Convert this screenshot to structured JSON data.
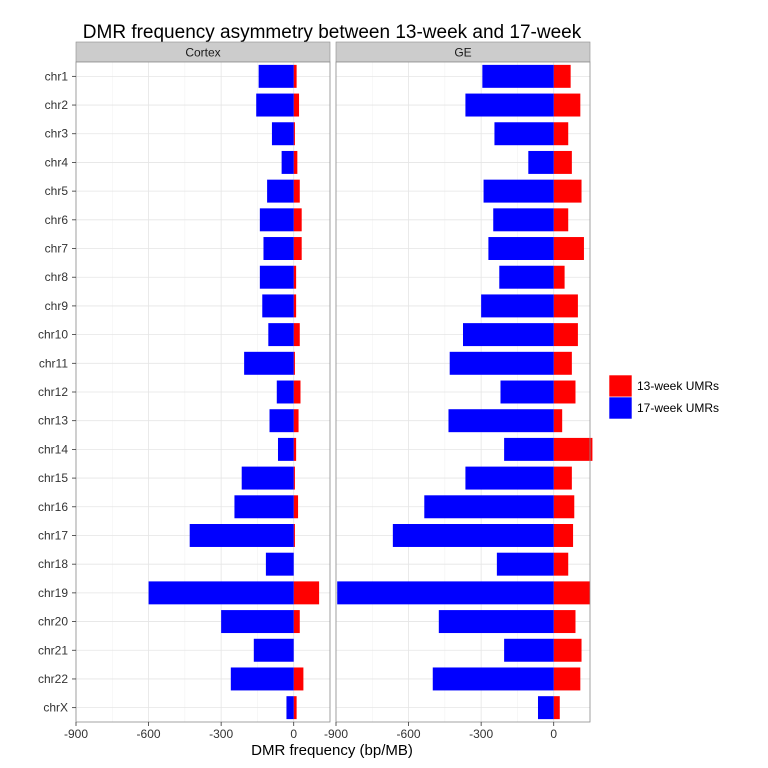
{
  "chart_data": {
    "type": "bar",
    "title": "DMR frequency asymmetry between 13-week and 17-week",
    "xlabel": "DMR frequency (bp/MB)",
    "ylabel": "",
    "xlim": [
      -900,
      150
    ],
    "x_ticks": [
      -900,
      -600,
      -300,
      0
    ],
    "x_tick_labels": [
      "-900",
      "-600",
      "-300",
      "0"
    ],
    "grid": true,
    "legend_position": "right",
    "categories": [
      "chr1",
      "chr2",
      "chr3",
      "chr4",
      "chr5",
      "chr6",
      "chr7",
      "chr8",
      "chr9",
      "chr10",
      "chr11",
      "chr12",
      "chr13",
      "chr14",
      "chr15",
      "chr16",
      "chr17",
      "chr18",
      "chr19",
      "chr20",
      "chr21",
      "chr22",
      "chrX"
    ],
    "series_styles": [
      {
        "name": "13-week UMRs",
        "color": "#ff0000"
      },
      {
        "name": "17-week UMRs",
        "color": "#0000ff"
      }
    ],
    "facets": [
      {
        "label": "Cortex",
        "series": [
          {
            "name": "13-week UMRs",
            "values": [
              12,
              22,
              5,
              15,
              25,
              33,
              33,
              10,
              10,
              25,
              5,
              28,
              20,
              10,
              5,
              18,
              5,
              0,
              105,
              25,
              0,
              40,
              12
            ]
          },
          {
            "name": "17-week UMRs",
            "values": [
              -145,
              -155,
              -90,
              -50,
              -110,
              -140,
              -125,
              -140,
              -130,
              -105,
              -205,
              -70,
              -100,
              -65,
              -215,
              -245,
              -430,
              -115,
              -600,
              -300,
              -165,
              -260,
              -30
            ]
          }
        ]
      },
      {
        "label": "GE",
        "series": [
          {
            "name": "13-week UMRs",
            "values": [
              70,
              110,
              60,
              75,
              115,
              60,
              125,
              45,
              100,
              100,
              75,
              90,
              35,
              160,
              75,
              85,
              80,
              60,
              150,
              90,
              115,
              110,
              25
            ]
          },
          {
            "name": "17-week UMRs",
            "values": [
              -295,
              -365,
              -245,
              -105,
              -290,
              -250,
              -270,
              -225,
              -300,
              -375,
              -430,
              -220,
              -435,
              -205,
              -365,
              -535,
              -665,
              -235,
              -895,
              -475,
              -205,
              -500,
              -65
            ]
          }
        ]
      }
    ]
  }
}
